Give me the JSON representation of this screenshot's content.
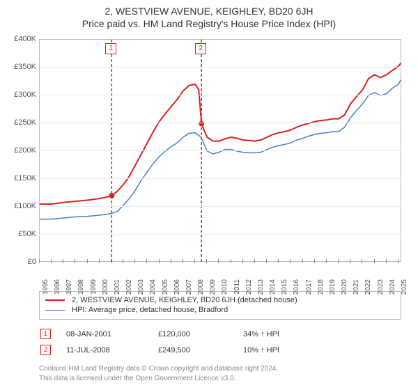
{
  "title_line1": "2, WESTVIEW AVENUE, KEIGHLEY, BD20 6JH",
  "title_line2": "Price paid vs. HM Land Registry's House Price Index (HPI)",
  "chart": {
    "type": "line",
    "xlim": [
      1995,
      2025.3
    ],
    "ylim": [
      0,
      400000
    ],
    "ytick_step": 50000,
    "yticks": [
      "£0",
      "£50K",
      "£100K",
      "£150K",
      "£200K",
      "£250K",
      "£300K",
      "£350K",
      "£400K"
    ],
    "xticks": [
      1995,
      1996,
      1997,
      1998,
      1999,
      2000,
      2001,
      2002,
      2003,
      2004,
      2005,
      2006,
      2007,
      2008,
      2009,
      2010,
      2011,
      2012,
      2013,
      2014,
      2015,
      2016,
      2017,
      2018,
      2019,
      2020,
      2021,
      2022,
      2023,
      2024,
      2025
    ],
    "background_color": "#ffffff",
    "grid_color": "#eeeeee",
    "axis_color": "#bbbbbb",
    "title_fontsize": 14,
    "tick_fontsize": 11,
    "series": [
      {
        "name": "subject",
        "label": "2, WESTVIEW AVENUE, KEIGHLEY, BD20 6JH (detached house)",
        "color": "#d8221f",
        "width": 2,
        "data": [
          [
            1995,
            105000
          ],
          [
            1996,
            105000
          ],
          [
            1997,
            108000
          ],
          [
            1998,
            110000
          ],
          [
            1999,
            112000
          ],
          [
            2000,
            115000
          ],
          [
            2000.5,
            117000
          ],
          [
            2001.02,
            120000
          ],
          [
            2001.5,
            128000
          ],
          [
            2002,
            140000
          ],
          [
            2002.5,
            155000
          ],
          [
            2003,
            175000
          ],
          [
            2003.5,
            195000
          ],
          [
            2004,
            215000
          ],
          [
            2004.5,
            235000
          ],
          [
            2005,
            253000
          ],
          [
            2005.5,
            267000
          ],
          [
            2006,
            280000
          ],
          [
            2006.5,
            293000
          ],
          [
            2007,
            308000
          ],
          [
            2007.5,
            318000
          ],
          [
            2008,
            320000
          ],
          [
            2008.3,
            310000
          ],
          [
            2008.53,
            249500
          ],
          [
            2008.8,
            235000
          ],
          [
            2009,
            225000
          ],
          [
            2009.5,
            218000
          ],
          [
            2010,
            218000
          ],
          [
            2010.5,
            222000
          ],
          [
            2011,
            225000
          ],
          [
            2011.5,
            223000
          ],
          [
            2012,
            220000
          ],
          [
            2012.5,
            219000
          ],
          [
            2013,
            218000
          ],
          [
            2013.5,
            220000
          ],
          [
            2014,
            225000
          ],
          [
            2014.5,
            230000
          ],
          [
            2015,
            233000
          ],
          [
            2015.5,
            235000
          ],
          [
            2016,
            238000
          ],
          [
            2016.5,
            243000
          ],
          [
            2017,
            247000
          ],
          [
            2017.5,
            250000
          ],
          [
            2018,
            253000
          ],
          [
            2018.5,
            255000
          ],
          [
            2019,
            256000
          ],
          [
            2019.5,
            258000
          ],
          [
            2020,
            258000
          ],
          [
            2020.5,
            265000
          ],
          [
            2021,
            285000
          ],
          [
            2021.5,
            298000
          ],
          [
            2022,
            310000
          ],
          [
            2022.5,
            330000
          ],
          [
            2023,
            337000
          ],
          [
            2023.5,
            332000
          ],
          [
            2024,
            337000
          ],
          [
            2024.5,
            345000
          ],
          [
            2025,
            352000
          ],
          [
            2025.2,
            358000
          ]
        ]
      },
      {
        "name": "hpi",
        "label": "HPI: Average price, detached house, Bradford",
        "color": "#4a7fc4",
        "width": 1.5,
        "data": [
          [
            1995,
            78000
          ],
          [
            1996,
            78000
          ],
          [
            1997,
            80000
          ],
          [
            1998,
            82000
          ],
          [
            1999,
            83000
          ],
          [
            2000,
            85000
          ],
          [
            2001,
            88000
          ],
          [
            2001.5,
            92000
          ],
          [
            2002,
            103000
          ],
          [
            2002.5,
            115000
          ],
          [
            2003,
            130000
          ],
          [
            2003.5,
            148000
          ],
          [
            2004,
            163000
          ],
          [
            2004.5,
            178000
          ],
          [
            2005,
            190000
          ],
          [
            2005.5,
            200000
          ],
          [
            2006,
            208000
          ],
          [
            2006.5,
            215000
          ],
          [
            2007,
            225000
          ],
          [
            2007.5,
            232000
          ],
          [
            2008,
            233000
          ],
          [
            2008.5,
            225000
          ],
          [
            2009,
            200000
          ],
          [
            2009.5,
            195000
          ],
          [
            2010,
            198000
          ],
          [
            2010.5,
            203000
          ],
          [
            2011,
            203000
          ],
          [
            2011.5,
            200000
          ],
          [
            2012,
            198000
          ],
          [
            2012.5,
            197000
          ],
          [
            2013,
            197000
          ],
          [
            2013.5,
            198000
          ],
          [
            2014,
            203000
          ],
          [
            2014.5,
            207000
          ],
          [
            2015,
            210000
          ],
          [
            2015.5,
            212000
          ],
          [
            2016,
            215000
          ],
          [
            2016.5,
            220000
          ],
          [
            2017,
            223000
          ],
          [
            2017.5,
            227000
          ],
          [
            2018,
            230000
          ],
          [
            2018.5,
            232000
          ],
          [
            2019,
            233000
          ],
          [
            2019.5,
            235000
          ],
          [
            2020,
            235000
          ],
          [
            2020.5,
            243000
          ],
          [
            2021,
            260000
          ],
          [
            2021.5,
            273000
          ],
          [
            2022,
            285000
          ],
          [
            2022.5,
            300000
          ],
          [
            2023,
            305000
          ],
          [
            2023.5,
            300000
          ],
          [
            2024,
            303000
          ],
          [
            2024.5,
            313000
          ],
          [
            2025,
            320000
          ],
          [
            2025.2,
            328000
          ]
        ]
      }
    ],
    "events": [
      {
        "n": "1",
        "year": 2001.02,
        "price": 120000,
        "date_label": "08-JAN-2001",
        "price_label": "£120,000",
        "pct_label": "34% ↑ HPI"
      },
      {
        "n": "2",
        "year": 2008.53,
        "price": 249500,
        "date_label": "11-JUL-2008",
        "price_label": "£249,500",
        "pct_label": "10% ↑ HPI"
      }
    ],
    "event_line_color": "#d8221f",
    "event_marker_color": "#d8221f",
    "dot_radius": 4
  },
  "legend": {
    "border_color": "#bbbbbb",
    "fontsize": 11
  },
  "footer_line1": "Contains HM Land Registry data © Crown copyright and database right 2024.",
  "footer_line2": "This data is licensed under the Open Government Licence v3.0."
}
